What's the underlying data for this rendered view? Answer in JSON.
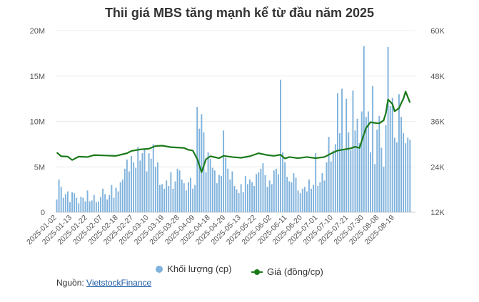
{
  "chart_data": {
    "type": "bar+line",
    "title": "Thii giá MBS tăng mạnh kể từ đầu năm 2025",
    "y_left": {
      "ticks": [
        "0",
        "5M",
        "10M",
        "15M",
        "20M"
      ],
      "range": [
        0,
        20000000
      ]
    },
    "y_right": {
      "ticks": [
        "12K",
        "24K",
        "36K",
        "48K",
        "60K"
      ],
      "range": [
        12000,
        60000
      ]
    },
    "x_tick_labels": [
      "2025-01-02",
      "2025-01-13",
      "2025-01-22",
      "2025-02-07",
      "2025-02-18",
      "2025-02-27",
      "2025-03-10",
      "2025-03-19",
      "2025-03-28",
      "2025-04-09",
      "2025-04-18",
      "2025-04-29",
      "2025-05-13",
      "2025-05-22",
      "2025-06-02",
      "2025-06-11",
      "2025-06-20",
      "2025-07-01",
      "2025-07-10",
      "2025-07-21",
      "2025-07-30",
      "2025-08-08",
      "2025-08-19"
    ],
    "n_sessions": 164,
    "grid": true,
    "series": [
      {
        "name": "Khối lượng (cp)",
        "kind": "bar",
        "axis": "left",
        "color": "#7fb2dc",
        "anchors": [
          [
            0,
            1.4
          ],
          [
            1,
            3.6
          ],
          [
            2,
            2.8
          ],
          [
            3,
            1.6
          ],
          [
            4,
            2.0
          ],
          [
            5,
            2.3
          ],
          [
            6,
            1.1
          ],
          [
            7,
            2.2
          ],
          [
            8,
            2.1
          ],
          [
            9,
            1.6
          ],
          [
            10,
            1.0
          ],
          [
            11,
            1.7
          ],
          [
            12,
            1.6
          ],
          [
            13,
            1.2
          ],
          [
            14,
            2.4
          ],
          [
            15,
            1.2
          ],
          [
            16,
            1.3
          ],
          [
            17,
            1.9
          ],
          [
            18,
            1.1
          ],
          [
            19,
            1.2
          ],
          [
            20,
            1.7
          ],
          [
            21,
            2.6
          ],
          [
            22,
            2.0
          ],
          [
            23,
            1.4
          ],
          [
            24,
            1.9
          ],
          [
            25,
            3.0
          ],
          [
            26,
            1.6
          ],
          [
            27,
            2.7
          ],
          [
            28,
            2.3
          ],
          [
            29,
            3.3
          ],
          [
            30,
            3.6
          ],
          [
            31,
            4.8
          ],
          [
            32,
            5.8
          ],
          [
            33,
            4.5
          ],
          [
            34,
            6.2
          ],
          [
            35,
            5.5
          ],
          [
            36,
            4.9
          ],
          [
            37,
            7.2
          ],
          [
            38,
            5.7
          ],
          [
            39,
            6.5
          ],
          [
            40,
            7.0
          ],
          [
            41,
            4.5
          ],
          [
            42,
            6.5
          ],
          [
            43,
            5.9
          ],
          [
            44,
            7.5
          ],
          [
            45,
            5.0
          ],
          [
            46,
            5.5
          ],
          [
            47,
            3.0
          ],
          [
            48,
            3.1
          ],
          [
            49,
            2.6
          ],
          [
            50,
            3.5
          ],
          [
            51,
            2.9
          ],
          [
            52,
            4.4
          ],
          [
            53,
            2.6
          ],
          [
            54,
            3.4
          ],
          [
            55,
            4.8
          ],
          [
            56,
            4.6
          ],
          [
            57,
            3.6
          ],
          [
            58,
            3.2
          ],
          [
            59,
            2.4
          ],
          [
            60,
            3.3
          ],
          [
            61,
            3.8
          ],
          [
            62,
            2.6
          ],
          [
            63,
            3.0
          ],
          [
            64,
            11.6
          ],
          [
            65,
            9.2
          ],
          [
            66,
            10.8
          ],
          [
            67,
            8.8
          ],
          [
            68,
            4.4
          ],
          [
            69,
            6.6
          ],
          [
            70,
            5.9
          ],
          [
            71,
            4.9
          ],
          [
            72,
            4.6
          ],
          [
            73,
            3.2
          ],
          [
            74,
            4.1
          ],
          [
            75,
            4.0
          ],
          [
            76,
            9.0
          ],
          [
            77,
            6.0
          ],
          [
            78,
            4.8
          ],
          [
            79,
            3.6
          ],
          [
            80,
            4.5
          ],
          [
            81,
            2.9
          ],
          [
            82,
            2.5
          ],
          [
            83,
            2.1
          ],
          [
            84,
            3.1
          ],
          [
            85,
            2.2
          ],
          [
            86,
            4.0
          ],
          [
            87,
            3.1
          ],
          [
            88,
            3.6
          ],
          [
            89,
            3.3
          ],
          [
            90,
            2.9
          ],
          [
            91,
            4.2
          ],
          [
            92,
            4.4
          ],
          [
            93,
            4.8
          ],
          [
            94,
            5.4
          ],
          [
            95,
            4.1
          ],
          [
            96,
            2.8
          ],
          [
            97,
            3.5
          ],
          [
            98,
            3.1
          ],
          [
            99,
            4.6
          ],
          [
            100,
            4.8
          ],
          [
            101,
            4.2
          ],
          [
            102,
            14.6
          ],
          [
            103,
            6.6
          ],
          [
            104,
            5.5
          ],
          [
            105,
            3.9
          ],
          [
            106,
            3.4
          ],
          [
            107,
            3.3
          ],
          [
            108,
            4.3
          ],
          [
            109,
            3.8
          ],
          [
            110,
            2.4
          ],
          [
            111,
            2.1
          ],
          [
            112,
            2.6
          ],
          [
            113,
            2.8
          ],
          [
            114,
            2.3
          ],
          [
            115,
            3.6
          ],
          [
            116,
            2.6
          ],
          [
            117,
            3.0
          ],
          [
            118,
            6.5
          ],
          [
            119,
            2.9
          ],
          [
            120,
            3.3
          ],
          [
            121,
            4.3
          ],
          [
            122,
            3.5
          ],
          [
            123,
            5.5
          ],
          [
            124,
            8.3
          ],
          [
            125,
            5.6
          ],
          [
            126,
            6.8
          ],
          [
            127,
            7.5
          ],
          [
            128,
            13.1
          ],
          [
            129,
            8.7
          ],
          [
            130,
            13.6
          ],
          [
            131,
            6.8
          ],
          [
            132,
            12.5
          ],
          [
            133,
            8.8
          ],
          [
            134,
            6.9
          ],
          [
            135,
            13.4
          ],
          [
            136,
            9.0
          ],
          [
            137,
            10.3
          ],
          [
            138,
            7.6
          ],
          [
            139,
            11.1
          ],
          [
            140,
            18.3
          ],
          [
            141,
            10.5
          ],
          [
            142,
            11.1
          ],
          [
            143,
            6.6
          ],
          [
            144,
            13.9
          ],
          [
            145,
            5.3
          ],
          [
            146,
            9.1
          ],
          [
            147,
            10.6
          ],
          [
            148,
            7.1
          ],
          [
            149,
            5.0
          ],
          [
            150,
            9.6
          ],
          [
            151,
            18.2
          ],
          [
            152,
            11.7
          ],
          [
            153,
            12.6
          ],
          [
            154,
            8.2
          ],
          [
            155,
            7.7
          ],
          [
            156,
            13.0
          ],
          [
            157,
            10.5
          ],
          [
            158,
            8.7
          ],
          [
            159,
            7.6
          ],
          [
            160,
            8.2
          ],
          [
            161,
            8.0
          ]
        ],
        "unit_note": "values in millions of shares"
      },
      {
        "name": "Giá (đồng/cp)",
        "kind": "line",
        "axis": "right",
        "color": "#1a7a1a",
        "anchors": [
          [
            0,
            27.8
          ],
          [
            2,
            26.8
          ],
          [
            5,
            26.7
          ],
          [
            7,
            25.8
          ],
          [
            10,
            26.7
          ],
          [
            14,
            26.6
          ],
          [
            17,
            27.1
          ],
          [
            22,
            27.0
          ],
          [
            27,
            26.9
          ],
          [
            32,
            27.6
          ],
          [
            34,
            28.2
          ],
          [
            38,
            28.6
          ],
          [
            42,
            28.8
          ],
          [
            45,
            29.5
          ],
          [
            48,
            29.6
          ],
          [
            52,
            29.2
          ],
          [
            58,
            29.0
          ],
          [
            60,
            28.5
          ],
          [
            62,
            28.3
          ],
          [
            64,
            26.1
          ],
          [
            66,
            22.6
          ],
          [
            68,
            26.0
          ],
          [
            70,
            26.8
          ],
          [
            74,
            26.3
          ],
          [
            76,
            26.9
          ],
          [
            80,
            26.6
          ],
          [
            84,
            26.4
          ],
          [
            88,
            26.8
          ],
          [
            92,
            27.6
          ],
          [
            96,
            27.1
          ],
          [
            99,
            26.9
          ],
          [
            102,
            27.2
          ],
          [
            104,
            26.2
          ],
          [
            106,
            26.6
          ],
          [
            110,
            26.3
          ],
          [
            114,
            26.6
          ],
          [
            118,
            26.3
          ],
          [
            122,
            26.6
          ],
          [
            125,
            27.5
          ],
          [
            128,
            28.3
          ],
          [
            131,
            28.6
          ],
          [
            134,
            28.9
          ],
          [
            136,
            29.3
          ],
          [
            138,
            29.0
          ],
          [
            140,
            32.6
          ],
          [
            141,
            34.3
          ],
          [
            143,
            35.8
          ],
          [
            145,
            35.6
          ],
          [
            147,
            35.5
          ],
          [
            149,
            36.3
          ],
          [
            150,
            38.2
          ],
          [
            151,
            41.8
          ],
          [
            152,
            41.2
          ],
          [
            153,
            40.6
          ],
          [
            154,
            38.7
          ],
          [
            156,
            39.5
          ],
          [
            157,
            40.8
          ],
          [
            158,
            42.0
          ],
          [
            159,
            43.9
          ],
          [
            161,
            41.0
          ]
        ],
        "unit_note": "values in thousands of đồng"
      }
    ]
  },
  "legend": {
    "volume_label": "Khối lượng (cp)",
    "price_label": "Giá (đồng/cp)",
    "volume_color": "#7fb2dc",
    "price_color": "#1a7a1a"
  },
  "source": {
    "prefix": "Nguồn: ",
    "link_text": "VietstockFinance"
  }
}
